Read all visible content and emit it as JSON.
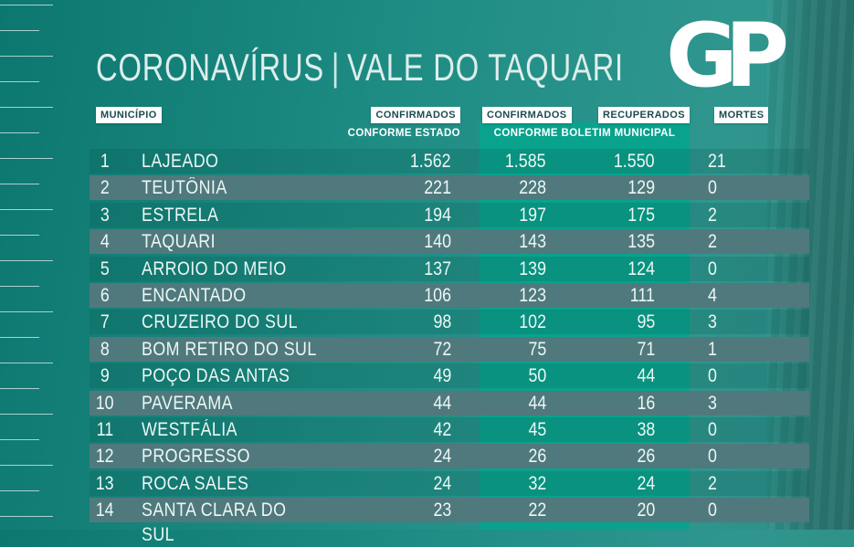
{
  "header": {
    "title_left": "CORONAVÍRUS",
    "title_sep": "|",
    "title_right": "VALE DO TAQUARI",
    "logo_text": "GP"
  },
  "table": {
    "col_municipio": "MUNICÍPIO",
    "col_confirmados_estado": "CONFIRMADOS",
    "sub_estado": "CONFORME ESTADO",
    "col_confirmados_municipal": "CONFIRMADOS",
    "col_recuperados": "RECUPERADOS",
    "sub_municipal": "CONFORME BOLETIM MUNICIPAL",
    "col_mortes": "MORTES",
    "rows": [
      {
        "rank": "1",
        "municipio": "LAJEADO",
        "confirmados_estado": "1.562",
        "confirmados_municipal": "1.585",
        "recuperados": "1.550",
        "mortes": "21"
      },
      {
        "rank": "2",
        "municipio": "TEUTÔNIA",
        "confirmados_estado": "221",
        "confirmados_municipal": "228",
        "recuperados": "129",
        "mortes": "0"
      },
      {
        "rank": "3",
        "municipio": "ESTRELA",
        "confirmados_estado": "194",
        "confirmados_municipal": "197",
        "recuperados": "175",
        "mortes": "2"
      },
      {
        "rank": "4",
        "municipio": "TAQUARI",
        "confirmados_estado": "140",
        "confirmados_municipal": "143",
        "recuperados": "135",
        "mortes": "2"
      },
      {
        "rank": "5",
        "municipio": "ARROIO DO MEIO",
        "confirmados_estado": "137",
        "confirmados_municipal": "139",
        "recuperados": "124",
        "mortes": "0"
      },
      {
        "rank": "6",
        "municipio": "ENCANTADO",
        "confirmados_estado": "106",
        "confirmados_municipal": "123",
        "recuperados": "111",
        "mortes": "4"
      },
      {
        "rank": "7",
        "municipio": "CRUZEIRO DO SUL",
        "confirmados_estado": "98",
        "confirmados_municipal": "102",
        "recuperados": "95",
        "mortes": "3"
      },
      {
        "rank": "8",
        "municipio": "BOM RETIRO DO SUL",
        "confirmados_estado": "72",
        "confirmados_municipal": "75",
        "recuperados": "71",
        "mortes": "1"
      },
      {
        "rank": "9",
        "municipio": "POÇO DAS ANTAS",
        "confirmados_estado": "49",
        "confirmados_municipal": "50",
        "recuperados": "44",
        "mortes": "0"
      },
      {
        "rank": "10",
        "municipio": "PAVERAMA",
        "confirmados_estado": "44",
        "confirmados_municipal": "44",
        "recuperados": "16",
        "mortes": "3"
      },
      {
        "rank": "11",
        "municipio": "WESTFÁLIA",
        "confirmados_estado": "42",
        "confirmados_municipal": "45",
        "recuperados": "38",
        "mortes": "0"
      },
      {
        "rank": "12",
        "municipio": "PROGRESSO",
        "confirmados_estado": "24",
        "confirmados_municipal": "26",
        "recuperados": "26",
        "mortes": "0"
      },
      {
        "rank": "13",
        "municipio": "ROCA SALES",
        "confirmados_estado": "24",
        "confirmados_municipal": "32",
        "recuperados": "24",
        "mortes": "2"
      },
      {
        "rank": "14",
        "municipio": "SANTA CLARA DO SUL",
        "confirmados_estado": "23",
        "confirmados_municipal": "22",
        "recuperados": "20",
        "mortes": "0"
      }
    ]
  },
  "colors": {
    "background_teal": "#1f8d84",
    "strip_green": "#09a28c",
    "row_gray": "#50797d",
    "badge_bg": "#ffffff",
    "badge_text": "#1d4b4f",
    "text": "#ecf7f5"
  },
  "chart_data": {
    "type": "table",
    "title": "CORONAVÍRUS | VALE DO TAQUARI",
    "columns": [
      "#",
      "MUNICÍPIO",
      "CONFIRMADOS CONFORME ESTADO",
      "CONFIRMADOS CONFORME BOLETIM MUNICIPAL",
      "RECUPERADOS CONFORME BOLETIM MUNICIPAL",
      "MORTES"
    ],
    "rows": [
      [
        1,
        "LAJEADO",
        1562,
        1585,
        1550,
        21
      ],
      [
        2,
        "TEUTÔNIA",
        221,
        228,
        129,
        0
      ],
      [
        3,
        "ESTRELA",
        194,
        197,
        175,
        2
      ],
      [
        4,
        "TAQUARI",
        140,
        143,
        135,
        2
      ],
      [
        5,
        "ARROIO DO MEIO",
        137,
        139,
        124,
        0
      ],
      [
        6,
        "ENCANTADO",
        106,
        123,
        111,
        4
      ],
      [
        7,
        "CRUZEIRO DO SUL",
        98,
        102,
        95,
        3
      ],
      [
        8,
        "BOM RETIRO DO SUL",
        72,
        75,
        71,
        1
      ],
      [
        9,
        "POÇO DAS ANTAS",
        49,
        50,
        44,
        0
      ],
      [
        10,
        "PAVERAMA",
        44,
        44,
        16,
        3
      ],
      [
        11,
        "WESTFÁLIA",
        42,
        45,
        38,
        0
      ],
      [
        12,
        "PROGRESSO",
        24,
        26,
        26,
        0
      ],
      [
        13,
        "ROCA SALES",
        24,
        32,
        24,
        2
      ],
      [
        14,
        "SANTA CLARA DO SUL",
        23,
        22,
        20,
        0
      ]
    ]
  }
}
